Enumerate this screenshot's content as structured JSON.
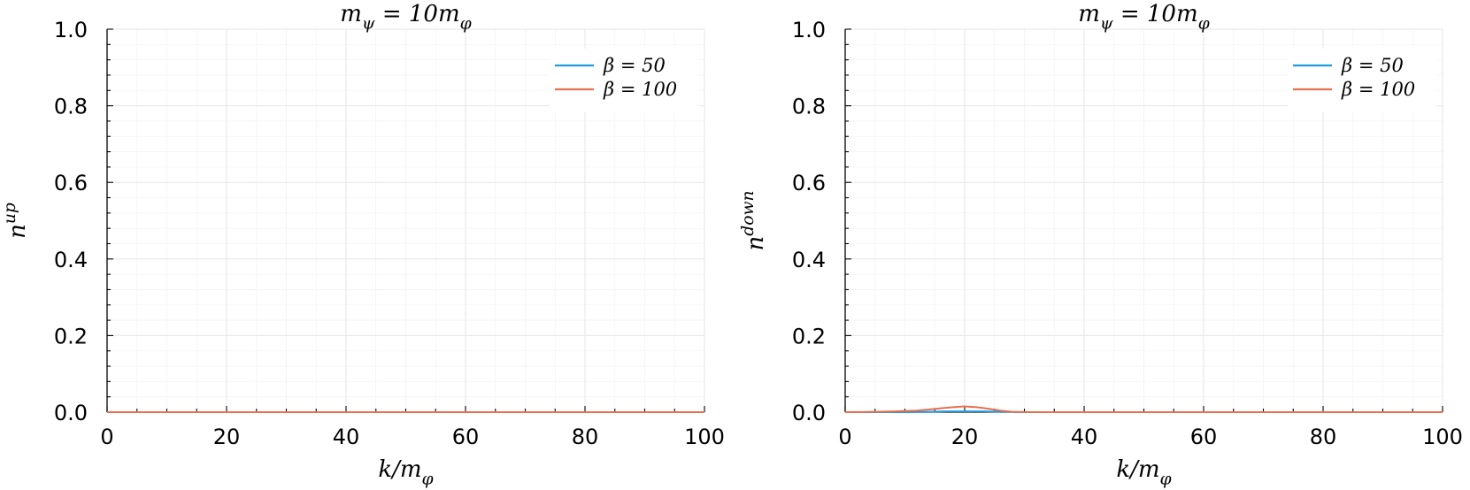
{
  "chart_data": [
    {
      "type": "line",
      "title": "m_ψ = 10m_φ",
      "xlabel": "k/m_φ",
      "ylabel": "n^up",
      "xlim": [
        0,
        100
      ],
      "ylim": [
        0,
        1
      ],
      "xticks": [
        "0",
        "20",
        "40",
        "60",
        "80",
        "100"
      ],
      "yticks": [
        "0.0",
        "0.2",
        "0.4",
        "0.6",
        "0.8",
        "1.0"
      ],
      "grid": true,
      "legend_position": "top-right",
      "series": [
        {
          "name": "β = 50",
          "color": "#1f9bde",
          "x": [
            0,
            10,
            20,
            30,
            40,
            50,
            60,
            70,
            80,
            90,
            100
          ],
          "y": [
            0,
            0,
            0,
            0,
            0,
            0,
            0,
            0,
            0,
            0,
            0
          ]
        },
        {
          "name": "β = 100",
          "color": "#e8704f",
          "x": [
            0,
            10,
            20,
            30,
            40,
            50,
            60,
            70,
            80,
            90,
            100
          ],
          "y": [
            0,
            0,
            0,
            0,
            0,
            0,
            0,
            0,
            0,
            0,
            0
          ]
        }
      ]
    },
    {
      "type": "line",
      "title": "m_ψ = 10m_φ",
      "xlabel": "k/m_φ",
      "ylabel": "n^down",
      "xlim": [
        0,
        100
      ],
      "ylim": [
        0,
        1
      ],
      "xticks": [
        "0",
        "20",
        "40",
        "60",
        "80",
        "100"
      ],
      "yticks": [
        "0.0",
        "0.2",
        "0.4",
        "0.6",
        "0.8",
        "1.0"
      ],
      "grid": true,
      "legend_position": "top-right",
      "series": [
        {
          "name": "β = 50",
          "color": "#1f9bde",
          "x": [
            0,
            10,
            14,
            17,
            20,
            23,
            26,
            30,
            40,
            60,
            80,
            100
          ],
          "y": [
            0,
            0,
            0.001,
            0.002,
            0.002,
            0.002,
            0.001,
            0,
            0,
            0,
            0,
            0
          ]
        },
        {
          "name": "β = 100",
          "color": "#e8704f",
          "x": [
            0,
            4,
            8,
            12,
            14,
            16,
            18,
            20,
            22,
            24,
            26,
            28,
            32,
            40,
            60,
            80,
            100
          ],
          "y": [
            0,
            0.0005,
            0.002,
            0.004,
            0.007,
            0.01,
            0.013,
            0.015,
            0.013,
            0.009,
            0.004,
            0.001,
            0,
            0,
            0,
            0,
            0
          ]
        }
      ]
    }
  ]
}
